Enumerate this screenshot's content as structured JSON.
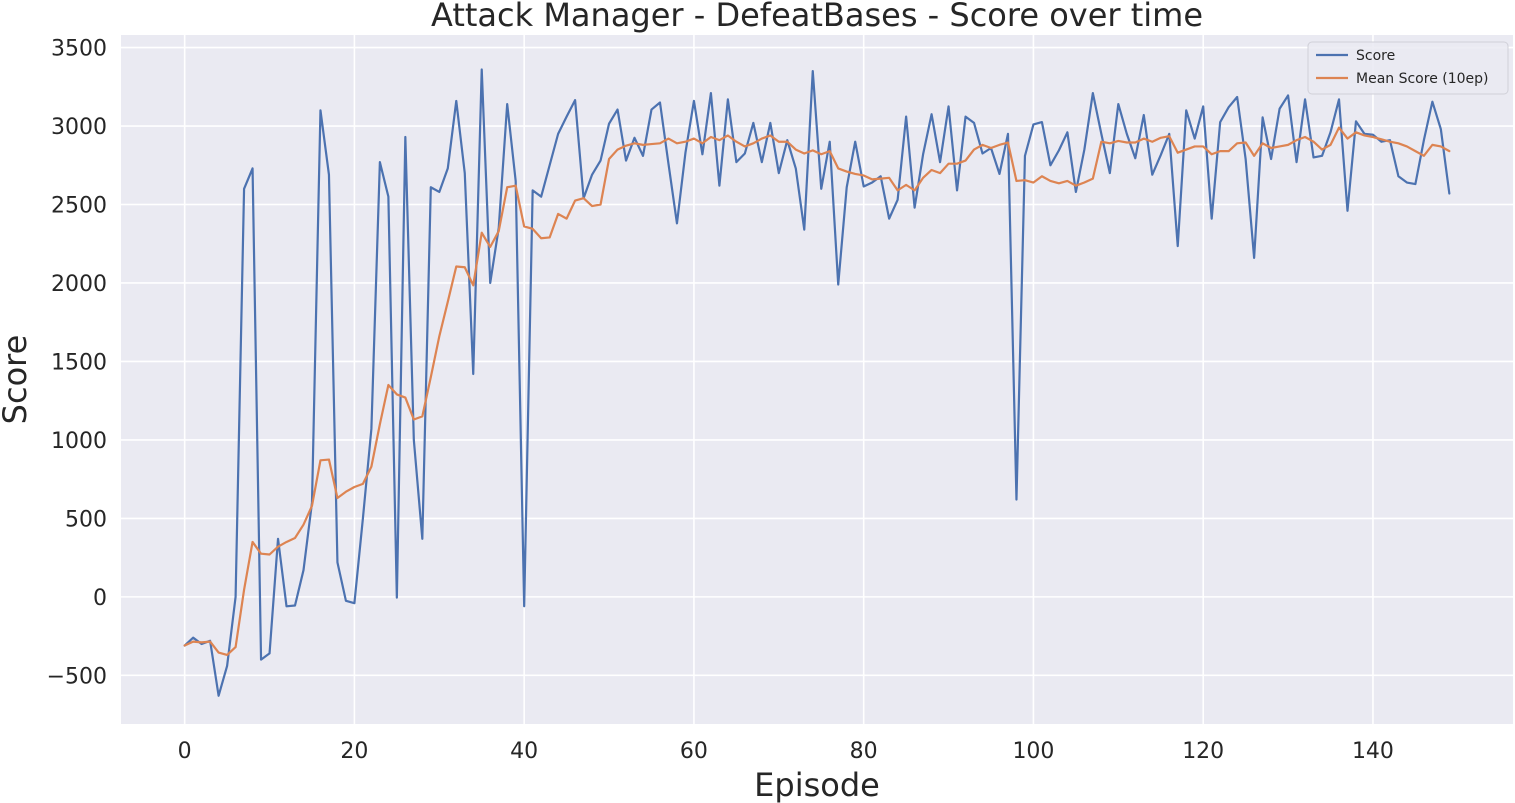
{
  "chart_data": {
    "type": "line",
    "title": "Attack Manager - DefeatBases - Score over time",
    "xlabel": "Episode",
    "ylabel": "Score",
    "xlim": [
      -7.5,
      156.5
    ],
    "ylim": [
      -810,
      3580
    ],
    "xticks": [
      0,
      20,
      40,
      60,
      80,
      100,
      120,
      140
    ],
    "yticks": [
      -500,
      0,
      500,
      1000,
      1500,
      2000,
      2500,
      3000,
      3500
    ],
    "ytick_labels": [
      "−500",
      "0",
      "500",
      "1000",
      "1500",
      "2000",
      "2500",
      "3000",
      "3500"
    ],
    "grid": true,
    "legend_position": "top-right",
    "background_color": "#eaeaf2",
    "grid_color": "#ffffff",
    "series": [
      {
        "name": "Score",
        "color": "#4c72b0",
        "values": [
          -310,
          -260,
          -300,
          -280,
          -630,
          -440,
          0,
          2600,
          2730,
          -400,
          -360,
          370,
          -60,
          -55,
          170,
          600,
          3100,
          2690,
          220,
          -25,
          -40,
          500,
          1070,
          2770,
          2550,
          -5,
          2930,
          1000,
          370,
          2610,
          2580,
          2730,
          3160,
          2700,
          1420,
          3360,
          2000,
          2350,
          3140,
          2650,
          -60,
          2590,
          2550,
          2750,
          2950,
          3060,
          3165,
          2540,
          2690,
          2780,
          3015,
          3105,
          2780,
          2925,
          2810,
          3105,
          3150,
          2760,
          2380,
          2830,
          3160,
          2820,
          3210,
          2620,
          3170,
          2770,
          2825,
          3020,
          2770,
          3020,
          2700,
          2910,
          2730,
          2340,
          3350,
          2600,
          2900,
          1990,
          2610,
          2900,
          2615,
          2640,
          2680,
          2410,
          2530,
          3060,
          2480,
          2820,
          3075,
          2770,
          3125,
          2590,
          3060,
          3020,
          2825,
          2860,
          2695,
          2950,
          620,
          2810,
          3010,
          3025,
          2750,
          2845,
          2960,
          2580,
          2850,
          3210,
          2950,
          2700,
          3140,
          2950,
          2795,
          3070,
          2690,
          2815,
          2950,
          2235,
          3100,
          2920,
          3125,
          2410,
          3025,
          3120,
          3185,
          2790,
          2160,
          3055,
          2790,
          3110,
          3195,
          2770,
          3170,
          2800,
          2810,
          2960,
          3170,
          2460,
          3030,
          2950,
          2945,
          2900,
          2910,
          2680,
          2640,
          2630,
          2910,
          3155,
          2980,
          2570
        ]
      },
      {
        "name": "Mean Score (10ep)",
        "color": "#dd8452",
        "values": [
          -310,
          -285,
          -290,
          -285,
          -355,
          -370,
          -320,
          45,
          350,
          275,
          270,
          320,
          350,
          375,
          460,
          580,
          870,
          875,
          630,
          670,
          700,
          720,
          830,
          1100,
          1350,
          1290,
          1270,
          1130,
          1150,
          1400,
          1660,
          1880,
          2105,
          2100,
          1985,
          2320,
          2230,
          2330,
          2610,
          2620,
          2360,
          2345,
          2285,
          2290,
          2440,
          2410,
          2525,
          2540,
          2490,
          2500,
          2790,
          2850,
          2875,
          2890,
          2880,
          2885,
          2890,
          2920,
          2890,
          2900,
          2920,
          2890,
          2930,
          2910,
          2940,
          2900,
          2870,
          2890,
          2920,
          2940,
          2900,
          2900,
          2850,
          2825,
          2845,
          2820,
          2840,
          2730,
          2710,
          2695,
          2685,
          2660,
          2665,
          2670,
          2590,
          2625,
          2590,
          2670,
          2720,
          2700,
          2760,
          2760,
          2780,
          2850,
          2880,
          2860,
          2880,
          2895,
          2650,
          2655,
          2640,
          2680,
          2650,
          2635,
          2650,
          2620,
          2640,
          2665,
          2900,
          2890,
          2905,
          2895,
          2895,
          2920,
          2900,
          2925,
          2935,
          2830,
          2850,
          2870,
          2870,
          2820,
          2840,
          2840,
          2890,
          2895,
          2810,
          2890,
          2860,
          2870,
          2880,
          2910,
          2930,
          2900,
          2850,
          2880,
          2990,
          2920,
          2960,
          2940,
          2930,
          2915,
          2900,
          2890,
          2870,
          2840,
          2810,
          2880,
          2870,
          2840
        ]
      }
    ]
  }
}
